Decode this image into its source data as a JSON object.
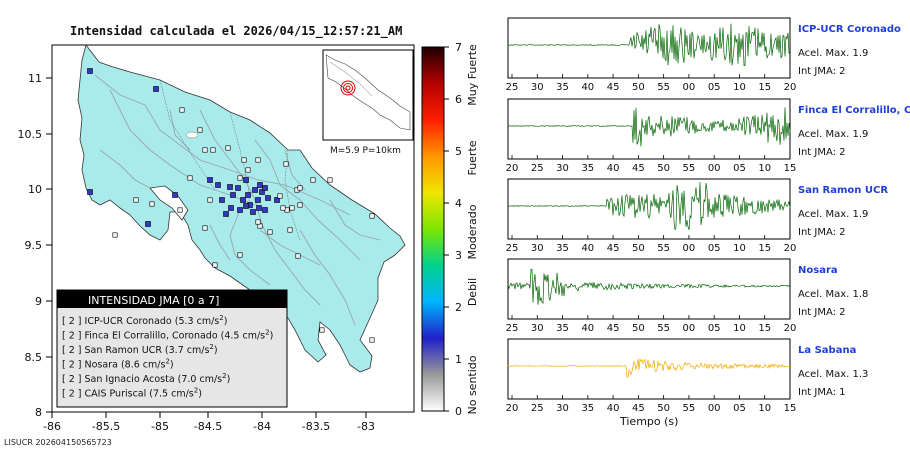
{
  "map": {
    "title": "Intensidad calculada el 2026/04/15_12:57:21_AM",
    "footer_id": "LISUCR 202604150565723",
    "x_ticks": [
      "-86",
      "-85.5",
      "-85",
      "-84.5",
      "-84",
      "-83.5",
      "-83"
    ],
    "y_ticks": [
      "8",
      "8.5",
      "9",
      "9.5",
      "10",
      "10.5",
      "11"
    ],
    "inset_label": "M=5.9 P=10km",
    "legend": {
      "title": "INTENSIDAD JMA [0 a 7]",
      "items": [
        {
          "int": "[ 2 ]",
          "name": "ICP-UCR Coronado",
          "accel": "(5.3 cm/s",
          "sup": "2",
          "close": ")"
        },
        {
          "int": "[ 2 ]",
          "name": "Finca El Corralillo, Coronado",
          "accel": "(4.5 cm/s",
          "sup": "2",
          "close": ")"
        },
        {
          "int": "[ 2 ]",
          "name": "San Ramon UCR",
          "accel": "(3.7 cm/s",
          "sup": "2",
          "close": ")"
        },
        {
          "int": "[ 2 ]",
          "name": "Nosara",
          "accel": "(8.6 cm/s",
          "sup": "2",
          "close": ")"
        },
        {
          "int": "[ 2 ]",
          "name": "San Ignacio Acosta",
          "accel": "(7.0 cm/s",
          "sup": "2",
          "close": ")"
        },
        {
          "int": "[ 2 ]",
          "name": "CAIS Puriscal",
          "accel": "(7.5 cm/s",
          "sup": "2",
          "close": ")"
        }
      ]
    }
  },
  "colorbar": {
    "ticks": [
      "0",
      "1",
      "2",
      "3",
      "4",
      "5",
      "6",
      "7"
    ],
    "labels": [
      "No sentido",
      "Debil",
      "Moderado",
      "Fuerte",
      "Muy Fuerte"
    ],
    "colors": [
      "#ffffff",
      "#9a9a9a",
      "#2020c8",
      "#00b4ff",
      "#00d28c",
      "#7de600",
      "#f0e600",
      "#ff9600",
      "#ff1e00",
      "#b40000",
      "#1e0000"
    ]
  },
  "chart_data": {
    "type": "line",
    "x_axis_title": "Tiempo (s)",
    "panels": [
      {
        "station": "ICP-UCR Coronado",
        "accel_label": "Acel. Max. 1.9",
        "int_label": "Int JMA: 2",
        "color": "#006400",
        "onset": 43,
        "amplitude": 1.0,
        "ticks": [
          "25",
          "30",
          "35",
          "40",
          "45",
          "50",
          "55",
          "00",
          "05",
          "10",
          "15",
          "20"
        ]
      },
      {
        "station": "Finca El Corralillo, Coronado",
        "accel_label": "Acel. Max. 1.9",
        "int_label": "Int JMA: 2",
        "color": "#006400",
        "onset": 44,
        "amplitude": 1.0,
        "ticks": [
          "20",
          "25",
          "30",
          "35",
          "40",
          "45",
          "50",
          "55",
          "00",
          "05",
          "10",
          "15"
        ]
      },
      {
        "station": "San Ramon UCR",
        "accel_label": "Acel. Max. 1.9",
        "int_label": "Int JMA: 2",
        "color": "#006400",
        "onset": 35,
        "amplitude": 1.0,
        "ticks": [
          "25",
          "30",
          "35",
          "40",
          "45",
          "50",
          "55",
          "00",
          "05",
          "10",
          "15",
          "20"
        ]
      },
      {
        "station": "Nosara",
        "accel_label": "Acel. Max. 1.8",
        "int_label": "Int JMA: 2",
        "color": "#006400",
        "onset": 20,
        "amplitude": 0.9,
        "ticks": [
          "25",
          "30",
          "35",
          "40",
          "45",
          "50",
          "55",
          "00",
          "05",
          "10",
          "15",
          "20"
        ]
      },
      {
        "station": "La Sabana",
        "accel_label": "Acel. Max. 1.3",
        "int_label": "Int JMA: 1",
        "color": "#f5a800",
        "onset": 42,
        "amplitude": 0.85,
        "ticks": [
          "20",
          "25",
          "30",
          "35",
          "40",
          "45",
          "50",
          "55",
          "00",
          "05",
          "10",
          "15"
        ]
      }
    ]
  }
}
